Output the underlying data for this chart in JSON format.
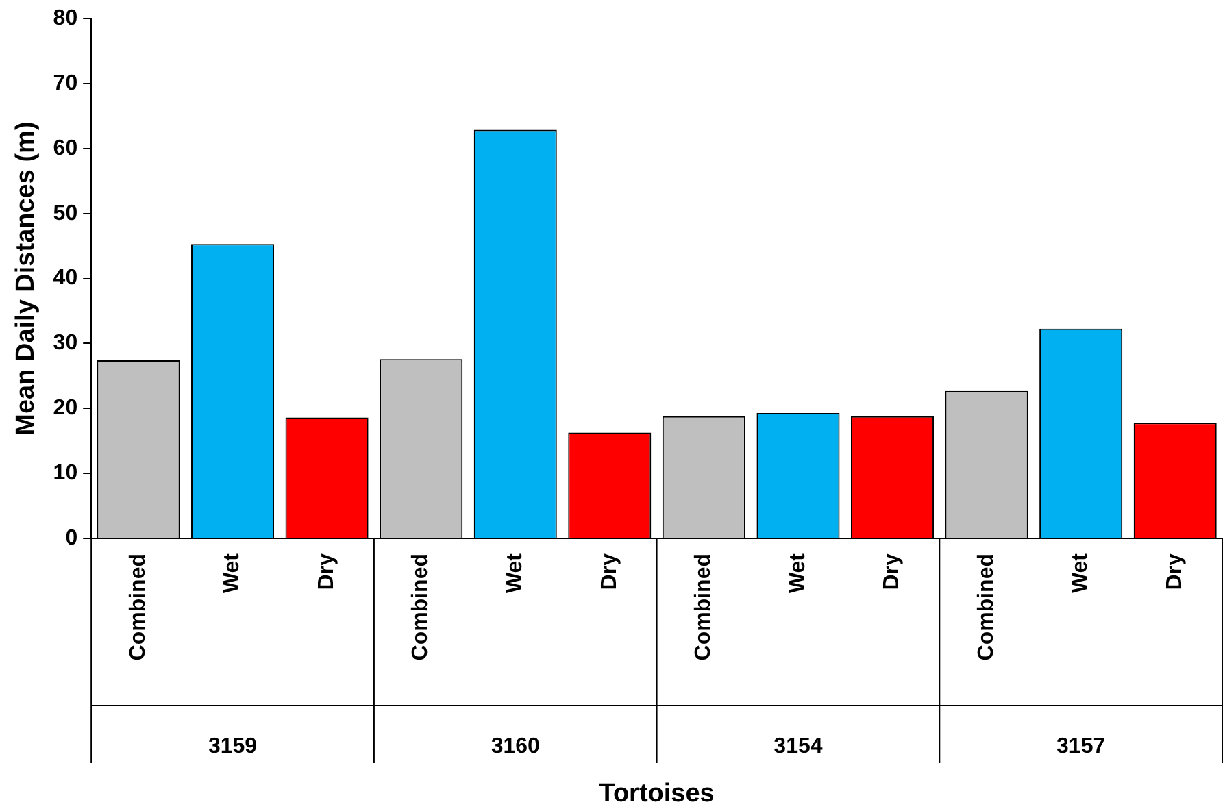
{
  "chart_data": {
    "type": "bar",
    "xlabel": "Tortoises",
    "ylabel": "Mean Daily Distances (m)",
    "categories": [
      "Combined",
      "Wet",
      "Dry",
      "Combined",
      "Wet",
      "Dry",
      "Combined",
      "Wet",
      "Dry",
      "Combined",
      "Wet",
      "Dry"
    ],
    "values": [
      27.4,
      45.3,
      18.6,
      27.6,
      62.9,
      16.3,
      18.8,
      19.3,
      18.8,
      22.7,
      32.3,
      17.8
    ],
    "colors": [
      "#bfbfbf",
      "#00b0f0",
      "#ff0000",
      "#bfbfbf",
      "#00b0f0",
      "#ff0000",
      "#bfbfbf",
      "#00b0f0",
      "#ff0000",
      "#bfbfbf",
      "#00b0f0",
      "#ff0000"
    ],
    "annotations": [
      "3159",
      "3160",
      "3154",
      "3157"
    ],
    "ylim": [
      0,
      80
    ],
    "yticks": [
      0,
      10,
      20,
      30,
      40,
      50,
      60,
      70,
      80
    ],
    "grid": false,
    "legend": false
  }
}
